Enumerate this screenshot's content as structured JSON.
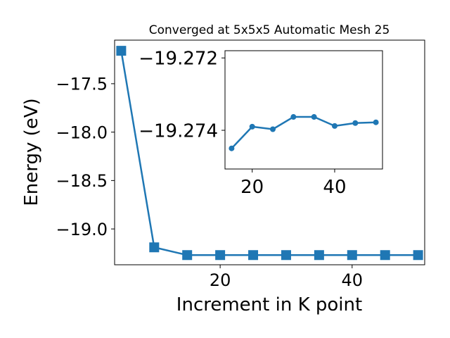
{
  "chart_data": [
    {
      "type": "line",
      "title": "Converged at 5x5x5 Automatic Mesh 25",
      "xlabel": "Increment in K point",
      "ylabel": "Energy (eV)",
      "x": [
        5,
        10,
        15,
        20,
        25,
        30,
        35,
        40,
        45,
        50
      ],
      "series": [
        {
          "values": [
            -17.16,
            -19.19,
            -19.27,
            -19.27,
            -19.27,
            -19.27,
            -19.27,
            -19.27,
            -19.27,
            -19.27
          ]
        }
      ],
      "xlim": [
        4.0,
        51.0
      ],
      "ylim": [
        -19.37,
        -17.05
      ],
      "xticks": [
        20,
        40
      ],
      "xtick_labels": [
        "20",
        "40"
      ],
      "yticks": [
        -17.5,
        -18.0,
        -18.5,
        -19.0
      ],
      "ytick_labels": [
        "−17.5",
        "−18.0",
        "−18.5",
        "−19.0"
      ],
      "marker": "square",
      "color": "#1f77b4",
      "grid": false
    },
    {
      "type": "line",
      "title": "",
      "xlabel": "",
      "ylabel": "",
      "x": [
        15,
        20,
        25,
        30,
        35,
        40,
        45,
        50
      ],
      "series": [
        {
          "values": [
            -19.2745,
            -19.2739,
            -19.27397,
            -19.27363,
            -19.27363,
            -19.27388,
            -19.2738,
            -19.27378
          ]
        }
      ],
      "xlim": [
        13.4,
        51.6
      ],
      "ylim": [
        -19.27507,
        -19.2718
      ],
      "xticks": [
        20,
        40
      ],
      "xtick_labels": [
        "20",
        "40"
      ],
      "yticks": [
        -19.274,
        -19.272
      ],
      "ytick_labels": [
        "−19.274",
        "−19.272"
      ],
      "marker": "circle",
      "color": "#1f77b4",
      "grid": false,
      "inset": true
    }
  ]
}
